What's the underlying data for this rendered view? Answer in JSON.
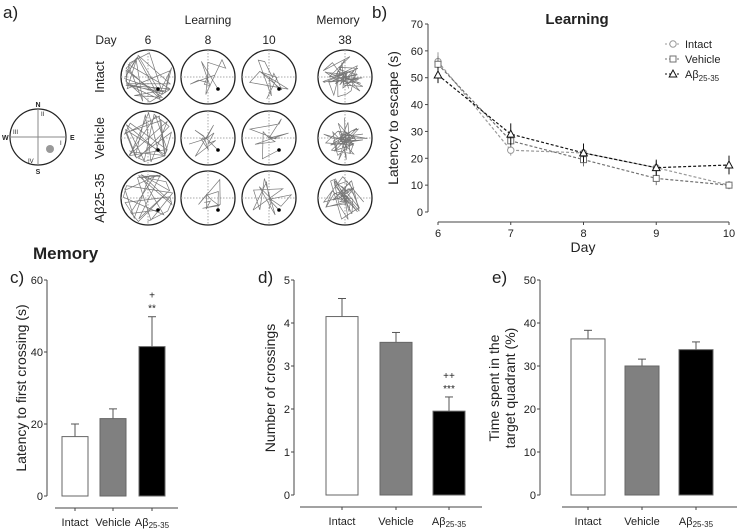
{
  "panel_labels": {
    "a": "a)",
    "b": "b)",
    "c": "c)",
    "d": "d)",
    "e": "e)"
  },
  "memory_title": "Memory",
  "panel_a": {
    "compass": {
      "n": "N",
      "s": "S",
      "e": "E",
      "w": "W",
      "quadrants": [
        "I",
        "II",
        "III",
        "IV"
      ]
    },
    "learning_header": "Learning",
    "memory_header": "Memory",
    "day_label": "Day",
    "days": [
      "6",
      "8",
      "10",
      "38"
    ],
    "groups": [
      "Intact",
      "Vehicle",
      "Aβ25-35"
    ]
  },
  "chart_data": [
    {
      "id": "b",
      "type": "line",
      "title": "Learning",
      "xlabel": "Day",
      "ylabel": "Latency to escape (s)",
      "x": [
        6,
        7,
        8,
        9,
        10
      ],
      "xticks": [
        "6",
        "7",
        "8",
        "9",
        "10"
      ],
      "ylim": [
        0,
        70
      ],
      "yticks": [
        "0",
        "10",
        "20",
        "30",
        "40",
        "50",
        "60",
        "70"
      ],
      "legend_position": "top-right",
      "series": [
        {
          "name": "Intact",
          "marker": "circle",
          "color": "#9a9a9a",
          "values": [
            56,
            23,
            22,
            16.5,
            10
          ],
          "errors": [
            3.5,
            2,
            2.5,
            2.5,
            1.5
          ]
        },
        {
          "name": "Vehicle",
          "marker": "square",
          "color": "#707070",
          "values": [
            55,
            26.5,
            19.5,
            12.5,
            10
          ],
          "errors": [
            3,
            2.5,
            2.5,
            2.5,
            1.5
          ]
        },
        {
          "name": "Aβ25-35",
          "marker": "triangle",
          "color": "#111111",
          "values": [
            51,
            29,
            22,
            16.5,
            17.5
          ],
          "errors": [
            3,
            4,
            3.5,
            3,
            3.5
          ]
        }
      ]
    },
    {
      "id": "c",
      "type": "bar",
      "ylabel": "Latency to first crossing (s)",
      "categories": [
        "Intact",
        "Vehicle",
        "Aβ25-35"
      ],
      "values": [
        16.5,
        21.5,
        41.5
      ],
      "errors": [
        3.5,
        2.7,
        8.3
      ],
      "colors": [
        "#ffffff",
        "#808080",
        "#000000"
      ],
      "ylim": [
        0,
        60
      ],
      "yticks": [
        "0",
        "20",
        "40",
        "60"
      ],
      "annotations": [
        "",
        "",
        "+\n**"
      ]
    },
    {
      "id": "d",
      "type": "bar",
      "ylabel": "Number of crossings",
      "categories": [
        "Intact",
        "Vehicle",
        "Aβ25-35"
      ],
      "values": [
        4.15,
        3.55,
        1.95
      ],
      "errors": [
        0.42,
        0.23,
        0.33
      ],
      "colors": [
        "#ffffff",
        "#808080",
        "#000000"
      ],
      "ylim": [
        0,
        5
      ],
      "yticks": [
        "0",
        "1",
        "2",
        "3",
        "4",
        "5"
      ],
      "annotations": [
        "",
        "",
        "++\n***"
      ]
    },
    {
      "id": "e",
      "type": "bar",
      "ylabel": "Time spent in the target quadrant (%)",
      "ylabel_lines": [
        "Time spent in the",
        "target quadrant (%)"
      ],
      "categories": [
        "Intact",
        "Vehicle",
        "Aβ25-35"
      ],
      "values": [
        36.3,
        30,
        33.8
      ],
      "errors": [
        2,
        1.6,
        1.8
      ],
      "colors": [
        "#ffffff",
        "#808080",
        "#000000"
      ],
      "ylim": [
        0,
        50
      ],
      "yticks": [
        "0",
        "10",
        "20",
        "30",
        "40",
        "50"
      ],
      "annotations": [
        "",
        "",
        ""
      ]
    }
  ]
}
